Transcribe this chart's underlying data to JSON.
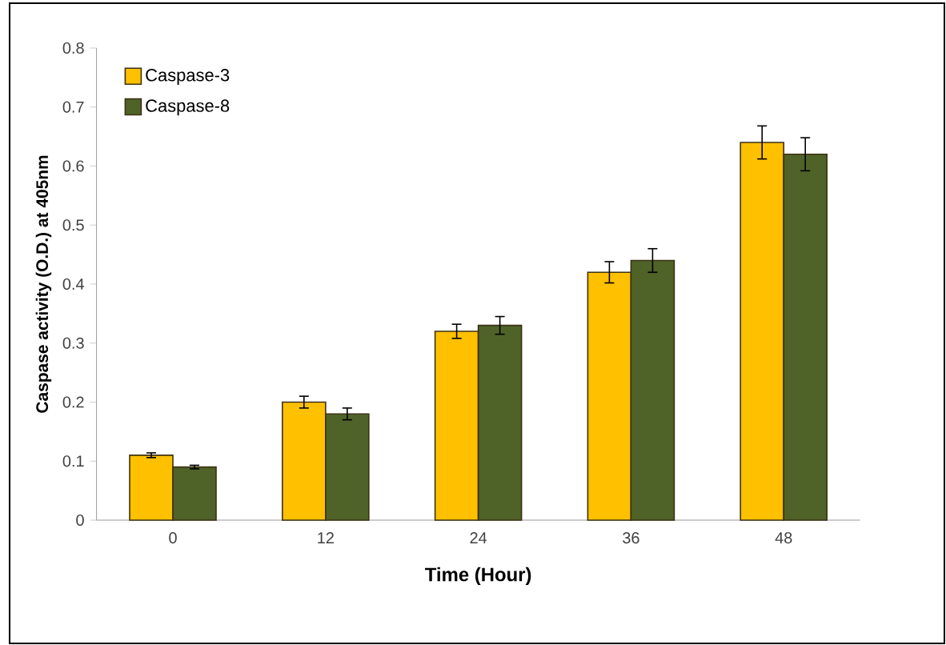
{
  "chart_data": {
    "type": "bar",
    "xlabel": "Time (Hour)",
    "ylabel": "Caspase activity (O.D.) at 405nm",
    "categories": [
      "0",
      "12",
      "24",
      "36",
      "48"
    ],
    "series": [
      {
        "name": "Caspase-3",
        "color": "#ffc000",
        "values": [
          0.11,
          0.2,
          0.32,
          0.42,
          0.64
        ],
        "errors": [
          0.004,
          0.01,
          0.012,
          0.018,
          0.028
        ]
      },
      {
        "name": "Caspase-8",
        "color": "#4f6228",
        "values": [
          0.09,
          0.18,
          0.33,
          0.44,
          0.62
        ],
        "errors": [
          0.003,
          0.01,
          0.015,
          0.02,
          0.028
        ]
      }
    ],
    "ylim": [
      0,
      0.8
    ],
    "yticks": [
      0,
      0.1,
      0.2,
      0.3,
      0.4,
      0.5,
      0.6,
      0.7,
      0.8
    ],
    "grid": false,
    "legend": "top left"
  }
}
